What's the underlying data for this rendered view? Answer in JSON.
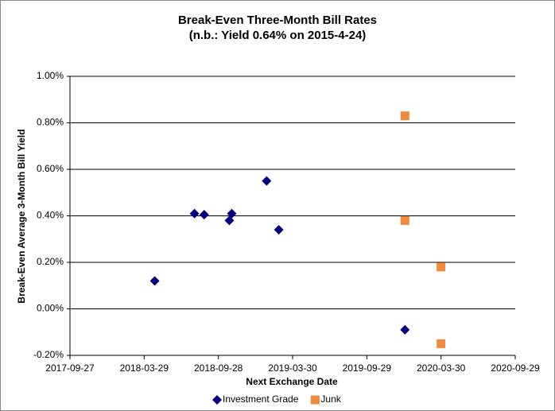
{
  "chart_data": {
    "type": "scatter",
    "title": "Break-Even Three-Month Bill Rates",
    "subtitle": "(n.b.: Yield 0.64% on 2015-4-24)",
    "x_label": "Next Exchange Date",
    "y_label": "Break-Even Average 3-Month Bill Yield",
    "xlim": [
      "2017-09-27",
      "2020-09-29"
    ],
    "xticks": [
      "2017-09-27",
      "2018-03-29",
      "2018-09-28",
      "2019-03-30",
      "2019-09-29",
      "2020-03-30",
      "2020-09-29"
    ],
    "ylim": [
      -0.2,
      1.0
    ],
    "yticks": [
      {
        "value": -0.2,
        "label": "-0.20%"
      },
      {
        "value": 0,
        "label": "0.00%"
      },
      {
        "value": 0.2,
        "label": "0.20%"
      },
      {
        "value": 0.4,
        "label": "0.40%"
      },
      {
        "value": 0.6,
        "label": "0.60%"
      },
      {
        "value": 0.8,
        "label": "0.80%"
      },
      {
        "value": 1.0,
        "label": "1.00%"
      }
    ],
    "grid": true,
    "legend": "bottom",
    "series": [
      {
        "name": "Investment Grade",
        "color": "#000080",
        "marker": "diamond",
        "x": [
          "2018-04-24",
          "2018-07-31",
          "2018-08-24",
          "2018-10-25",
          "2018-10-31",
          "2019-01-25",
          "2019-02-24",
          "2020-01-01"
        ],
        "values": [
          0.12,
          0.41,
          0.405,
          0.38,
          0.41,
          0.55,
          0.34,
          -0.09
        ]
      },
      {
        "name": "Junk",
        "color": "#f08a3c",
        "marker": "square",
        "x": [
          "2020-01-01",
          "2020-01-01",
          "2020-03-30",
          "2020-03-30"
        ],
        "values": [
          0.83,
          0.38,
          0.18,
          -0.15
        ]
      }
    ]
  }
}
